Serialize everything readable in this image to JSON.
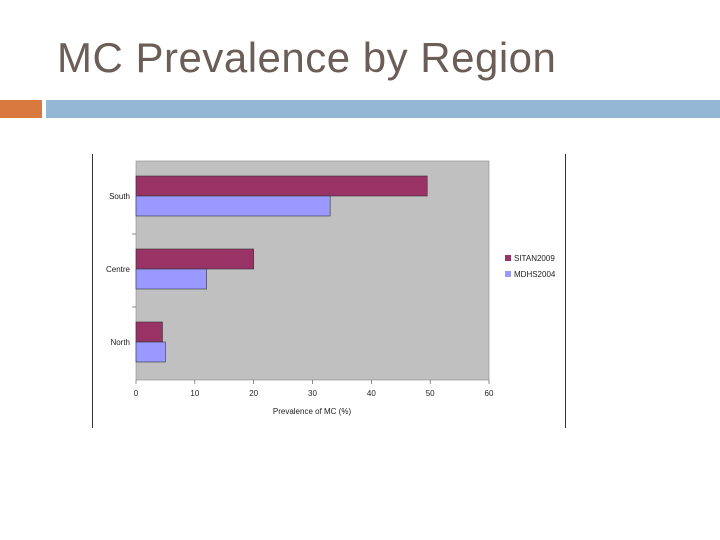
{
  "slide": {
    "title": "MC Prevalence by Region"
  },
  "colors": {
    "title_text": "#6b5e57",
    "accent_orange": "#d9793f",
    "accent_blue": "#93b7d4",
    "plot_bg": "#c0c0c0",
    "series1": "#993366",
    "series2": "#9999ff"
  },
  "chart_data": {
    "type": "bar",
    "orientation": "horizontal",
    "categories": [
      "South",
      "Centre",
      "North"
    ],
    "series": [
      {
        "name": "SITAN2009",
        "values": [
          49.5,
          20,
          4.5
        ],
        "color": "#993366"
      },
      {
        "name": "MDHS2004",
        "values": [
          33,
          12,
          5
        ],
        "color": "#9999ff"
      }
    ],
    "xlabel": "Prevalence of MC (%)",
    "ylabel": "",
    "xlim": [
      0,
      60
    ],
    "xticks": [
      0,
      10,
      20,
      30,
      40,
      50,
      60
    ],
    "grid": false,
    "legend_position": "right"
  }
}
